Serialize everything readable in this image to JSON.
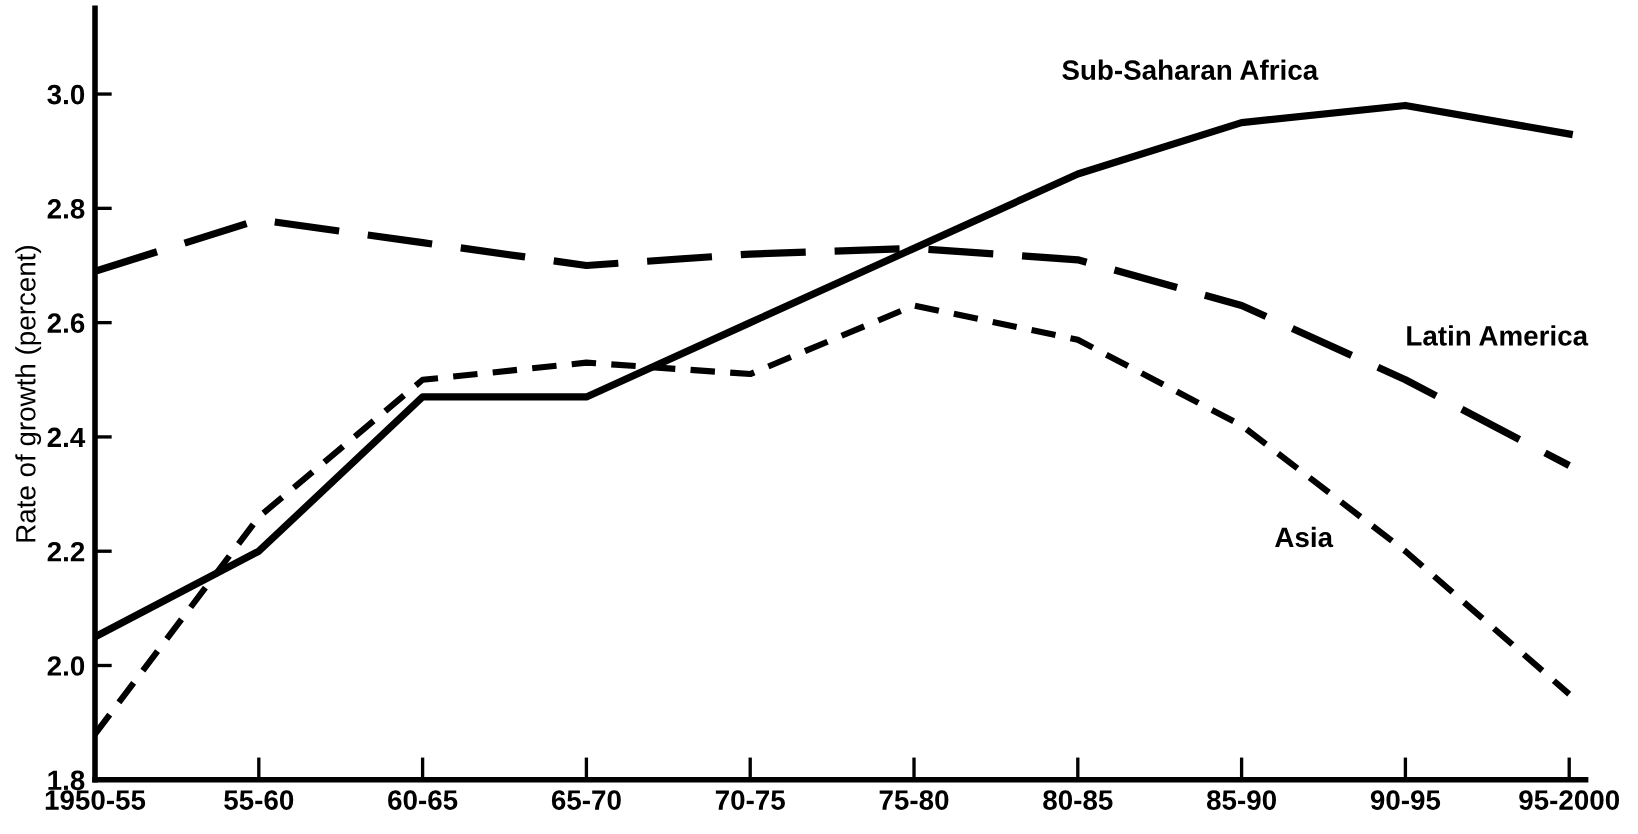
{
  "chart_data": {
    "type": "line",
    "ylabel": "Rate of growth (percent)",
    "categories": [
      "1950-55",
      "55-60",
      "60-65",
      "65-70",
      "70-75",
      "75-80",
      "80-85",
      "85-90",
      "90-95",
      "95-2000"
    ],
    "series": [
      {
        "name": "Sub-Saharan Africa",
        "color": "#000000",
        "line_style": "solid",
        "values": [
          2.05,
          2.2,
          2.47,
          2.47,
          2.6,
          2.73,
          2.86,
          2.95,
          2.98,
          2.93
        ]
      },
      {
        "name": "Latin America",
        "color": "#000000",
        "line_style": "dashed",
        "values": [
          2.69,
          2.78,
          2.74,
          2.7,
          2.72,
          2.73,
          2.71,
          2.63,
          2.5,
          2.35
        ]
      },
      {
        "name": "Asia",
        "color": "#000000",
        "line_style": "dotted",
        "values": [
          1.88,
          2.26,
          2.5,
          2.53,
          2.51,
          2.63,
          2.57,
          2.42,
          2.2,
          1.95
        ]
      }
    ],
    "ylim": [
      1.8,
      3.15
    ],
    "yticks": [
      1.8,
      {
        "value": 2.0,
        "label": "2.0"
      },
      2.2,
      2.4,
      2.6,
      2.8,
      {
        "value": 3.0,
        "label": "3.0"
      }
    ],
    "grid": false,
    "legend": false
  }
}
